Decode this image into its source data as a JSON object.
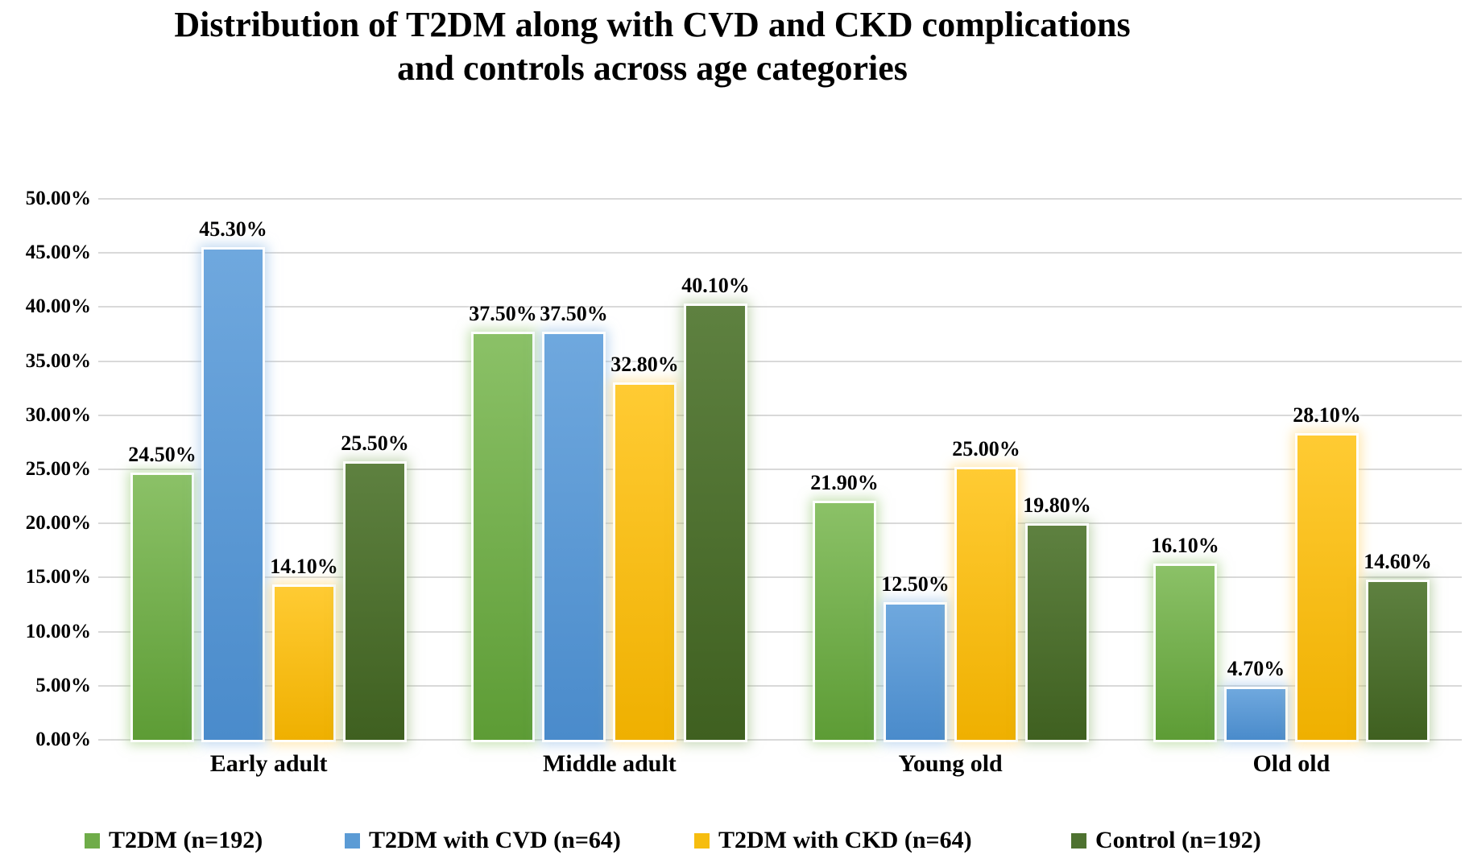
{
  "chart_data": {
    "type": "bar",
    "title": "Distribution of T2DM along with CVD and CKD complications and controls across age categories",
    "title_lines": [
      "Distribution of T2DM along with CVD and CKD complications",
      "and controls across age categories"
    ],
    "categories": [
      "Early adult",
      "Middle adult",
      "Young old",
      "Old old"
    ],
    "series": [
      {
        "name": "T2DM (n=192)",
        "values": [
          24.5,
          37.5,
          21.9,
          16.1
        ],
        "value_labels": [
          "24.50%",
          "37.50%",
          "21.90%",
          "16.10%"
        ],
        "color_top": "#8BC167",
        "color_bottom": "#5D9C35",
        "legend_color": "#6FAC49",
        "glow": "rgba(150,200,115,0.55)"
      },
      {
        "name": "T2DM with CVD (n=64)",
        "values": [
          45.3,
          37.5,
          12.5,
          4.7
        ],
        "value_labels": [
          "45.30%",
          "37.50%",
          "12.50%",
          "4.70%"
        ],
        "color_top": "#6FA8DE",
        "color_bottom": "#4A8BCB",
        "legend_color": "#5B9BD5",
        "glow": "rgba(150,190,230,0.6)"
      },
      {
        "name": "T2DM with CKD (n=64)",
        "values": [
          14.1,
          32.8,
          25.0,
          28.1
        ],
        "value_labels": [
          "14.10%",
          "32.80%",
          "25.00%",
          "28.10%"
        ],
        "color_top": "#FFCB33",
        "color_bottom": "#EFB000",
        "legend_color": "#F6BD0F",
        "glow": "rgba(255,215,120,0.6)"
      },
      {
        "name": "Control (n=192)",
        "values": [
          25.5,
          40.1,
          19.8,
          14.6
        ],
        "value_labels": [
          "25.50%",
          "40.10%",
          "19.80%",
          "14.60%"
        ],
        "color_top": "#5E8140",
        "color_bottom": "#3F6020",
        "legend_color": "#4E7230",
        "glow": "rgba(140,175,110,0.5)"
      }
    ],
    "yticks": [
      {
        "v": 0,
        "label": "0.00%"
      },
      {
        "v": 5,
        "label": "5.00%"
      },
      {
        "v": 10,
        "label": "10.00%"
      },
      {
        "v": 15,
        "label": "15.00%"
      },
      {
        "v": 20,
        "label": "20.00%"
      },
      {
        "v": 25,
        "label": "25.00%"
      },
      {
        "v": 30,
        "label": "30.00%"
      },
      {
        "v": 35,
        "label": "35.00%"
      },
      {
        "v": 40,
        "label": "40.00%"
      },
      {
        "v": 45,
        "label": "45.00%"
      },
      {
        "v": 50,
        "label": "50.00%"
      }
    ],
    "xlabel": "",
    "ylabel": "",
    "ylim": [
      0,
      50
    ],
    "grid": true,
    "legend_position": "bottom",
    "colors": {
      "gridline": "#D9D9D9",
      "text": "#000000",
      "background": "#FFFFFF"
    }
  }
}
